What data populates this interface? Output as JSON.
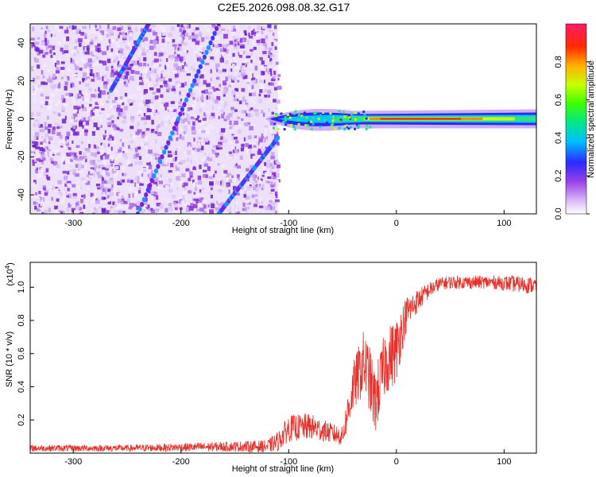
{
  "title": "C2E5.2026.098.08.32.G17",
  "chart_data": [
    {
      "type": "heatmap",
      "name": "spectrogram",
      "xlabel": "Height of straight line (km)",
      "ylabel": "Frequency (Hz)",
      "xlim": [
        -340,
        130
      ],
      "ylim": [
        -50,
        50
      ],
      "xticks": [
        -300,
        -200,
        -100,
        0,
        100
      ],
      "xtick_labels": [
        "-300",
        "-200",
        "-100",
        "0",
        "100"
      ],
      "yticks": [
        -40,
        -20,
        0,
        20,
        40
      ],
      "ytick_labels": [
        "-40",
        "-20",
        "0",
        "20",
        "40"
      ],
      "noise_region_x": [
        -340,
        -110
      ],
      "signal_line_frequency_hz": 0,
      "diagonal_streaks": [
        {
          "x": [
            -240,
            -165
          ],
          "y": [
            -50,
            50
          ]
        },
        {
          "x": [
            -265,
            -230
          ],
          "y": [
            15,
            50
          ]
        },
        {
          "x": [
            -165,
            -110
          ],
          "y": [
            -50,
            -10
          ]
        }
      ],
      "colorbar": {
        "label": "Normalized spectral amplitude",
        "range": [
          0,
          1
        ],
        "ticks": [
          0,
          0.2,
          0.4,
          0.6,
          0.8
        ],
        "tick_labels": [
          "0.0",
          "0.2",
          "0.4",
          "0.6",
          "0.8"
        ],
        "colors": [
          "#ffffff",
          "#c9a3f5",
          "#8a2be2",
          "#2020ff",
          "#00c8ff",
          "#00ff40",
          "#d4ff00",
          "#ff8c00",
          "#ff0000",
          "#ff2070"
        ]
      }
    },
    {
      "type": "line",
      "name": "snr",
      "xlabel": "Height of straight line (km)",
      "ylabel": "SNR (10 * v/v)",
      "y_multiplier_label": "(x10",
      "y_multiplier_exp": "4",
      "y_multiplier_close": ")",
      "xlim": [
        -340,
        130
      ],
      "ylim": [
        0,
        1.15
      ],
      "xticks": [
        -300,
        -200,
        -100,
        0,
        100
      ],
      "xtick_labels": [
        "-300",
        "-200",
        "-100",
        "0",
        "100"
      ],
      "yticks": [
        0.2,
        0.4,
        0.6,
        0.8,
        1.0
      ],
      "ytick_labels": [
        "0.2",
        "0.4",
        "0.6",
        "0.8",
        "1.0"
      ],
      "line_color": "#e8302a",
      "envelope": {
        "x": [
          -340,
          -250,
          -150,
          -120,
          -110,
          -100,
          -80,
          -60,
          -50,
          -45,
          -40,
          -30,
          -25,
          -20,
          -10,
          0,
          5,
          10,
          20,
          30,
          40,
          50,
          70,
          90,
          110,
          130
        ],
        "mean": [
          0.03,
          0.03,
          0.04,
          0.04,
          0.07,
          0.15,
          0.16,
          0.12,
          0.1,
          0.25,
          0.4,
          0.55,
          0.45,
          0.3,
          0.55,
          0.62,
          0.75,
          0.85,
          0.92,
          0.98,
          1.02,
          1.03,
          1.03,
          1.03,
          1.02,
          1.01
        ],
        "spread": [
          0.02,
          0.02,
          0.03,
          0.04,
          0.06,
          0.08,
          0.08,
          0.06,
          0.06,
          0.12,
          0.15,
          0.2,
          0.2,
          0.2,
          0.2,
          0.2,
          0.15,
          0.1,
          0.07,
          0.05,
          0.04,
          0.04,
          0.04,
          0.04,
          0.05,
          0.05
        ]
      }
    }
  ]
}
